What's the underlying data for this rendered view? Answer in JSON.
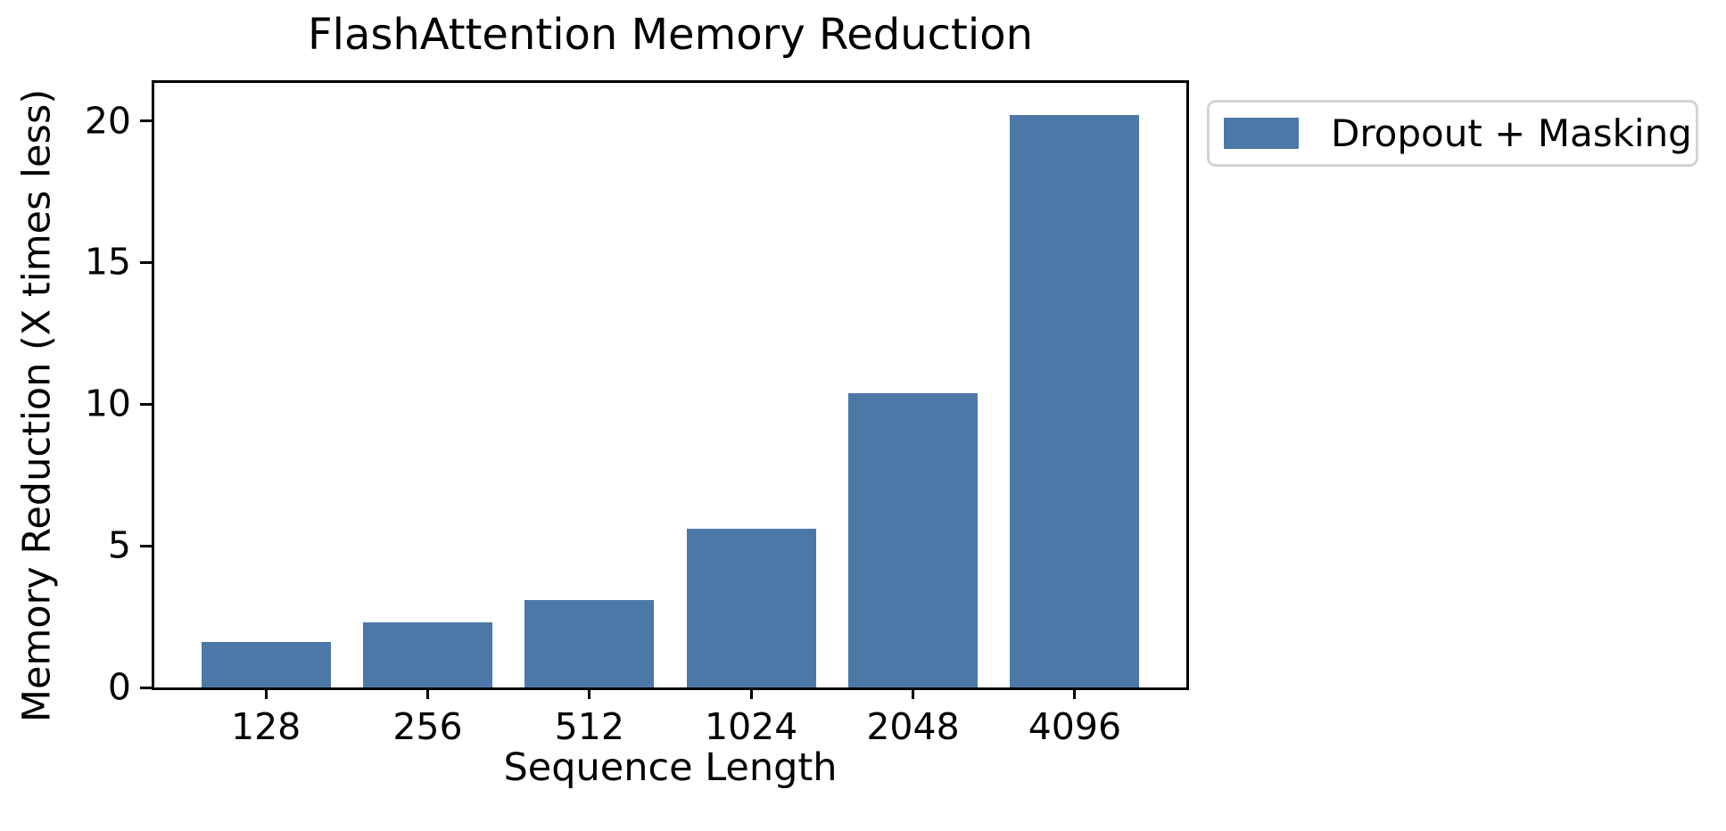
{
  "chart_data": {
    "type": "bar",
    "title": "FlashAttention Memory Reduction",
    "xlabel": "Sequence Length",
    "ylabel": "Memory Reduction (X times less)",
    "categories": [
      "128",
      "256",
      "512",
      "1024",
      "2048",
      "4096"
    ],
    "series": [
      {
        "name": "Dropout + Masking",
        "values": [
          1.6,
          2.3,
          3.1,
          5.6,
          10.4,
          20.2
        ]
      }
    ],
    "yticks": [
      0,
      5,
      10,
      15,
      20
    ],
    "ylim": [
      0,
      21.34
    ],
    "bar_color": "#4C78A8",
    "axis_color": "#000000",
    "legend": {
      "entries": [
        "Dropout + Masking"
      ],
      "position": "outside-upper-right"
    },
    "grid": false
  }
}
